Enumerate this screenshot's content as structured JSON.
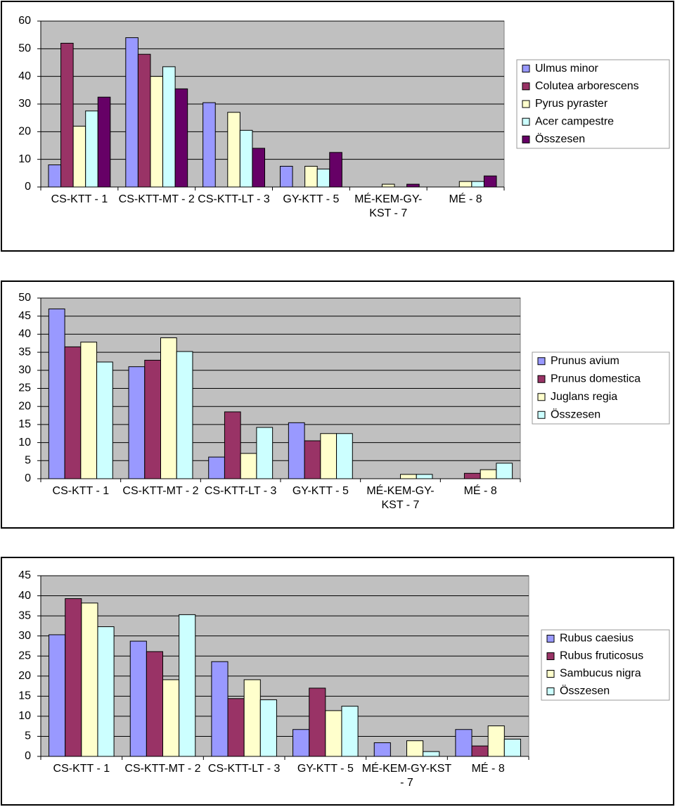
{
  "chart_data": [
    {
      "type": "bar",
      "categories": [
        "CS-KTT - 1",
        "CS-KTT-MT - 2",
        "CS-KTT-LT - 3",
        "GY-KTT - 5",
        "MÉ-KEM-GY-KST - 7",
        "MÉ - 8"
      ],
      "series": [
        {
          "name": "Ulmus minor",
          "color": "#9999ff",
          "values": [
            8,
            54,
            30.5,
            7.5,
            0,
            0
          ]
        },
        {
          "name": "Colutea arborescens",
          "color": "#993366",
          "values": [
            52,
            48,
            0,
            0,
            0,
            0
          ]
        },
        {
          "name": "Pyrus pyraster",
          "color": "#ffffcc",
          "values": [
            22,
            40,
            27,
            7.5,
            1,
            2
          ]
        },
        {
          "name": "Acer campestre",
          "color": "#ccffff",
          "values": [
            27.5,
            43.5,
            20.5,
            6.5,
            0,
            2
          ]
        },
        {
          "name": "Összesen",
          "color": "#660066",
          "values": [
            32.5,
            35.5,
            14,
            12.5,
            1,
            4
          ]
        }
      ],
      "ylim": [
        0,
        60
      ],
      "yticks": [
        0,
        10,
        20,
        30,
        40,
        50,
        60
      ],
      "grid": true,
      "legend": "right"
    },
    {
      "type": "bar",
      "categories": [
        "CS-KTT - 1",
        "CS-KTT-MT - 2",
        "CS-KTT-LT - 3",
        "GY-KTT - 5",
        "MÉ-KEM-GY-KST - 7",
        "MÉ - 8"
      ],
      "series": [
        {
          "name": "Prunus avium",
          "color": "#9999ff",
          "values": [
            47,
            31,
            6,
            15.5,
            0,
            0
          ]
        },
        {
          "name": "Prunus domestica",
          "color": "#993366",
          "values": [
            36.5,
            32.8,
            18.5,
            10.5,
            0,
            1.5
          ]
        },
        {
          "name": "Juglans regia",
          "color": "#ffffcc",
          "values": [
            37.8,
            39,
            7,
            12.5,
            1.2,
            2.5
          ]
        },
        {
          "name": "Összesen",
          "color": "#ccffff",
          "values": [
            32.3,
            35.2,
            14.2,
            12.5,
            1.2,
            4.3
          ]
        }
      ],
      "ylim": [
        0,
        50
      ],
      "yticks": [
        0,
        5,
        10,
        15,
        20,
        25,
        30,
        35,
        40,
        45,
        50
      ],
      "grid": true,
      "legend": "right"
    },
    {
      "type": "bar",
      "categories": [
        "CS-KTT - 1",
        "CS-KTT-MT - 2",
        "CS-KTT-LT - 3",
        "GY-KTT - 5",
        "MÉ-KEM-GY-KST - 7",
        "MÉ - 8"
      ],
      "series": [
        {
          "name": "Rubus caesius",
          "color": "#9999ff",
          "values": [
            30.3,
            28.7,
            23.6,
            6.7,
            3.4,
            6.7
          ]
        },
        {
          "name": "Rubus fruticosus",
          "color": "#993366",
          "values": [
            39.3,
            26.1,
            14.4,
            17,
            0,
            2.6
          ]
        },
        {
          "name": "Sambucus nigra",
          "color": "#ffffcc",
          "values": [
            38.2,
            19.1,
            19.1,
            11.4,
            3.9,
            7.6
          ]
        },
        {
          "name": "Összesen",
          "color": "#ccffff",
          "values": [
            32.3,
            35.3,
            14.1,
            12.5,
            1.2,
            4.3
          ]
        }
      ],
      "ylim": [
        0,
        45
      ],
      "yticks": [
        0,
        5,
        10,
        15,
        20,
        25,
        30,
        35,
        40,
        45
      ],
      "grid": true,
      "legend": "right"
    }
  ]
}
